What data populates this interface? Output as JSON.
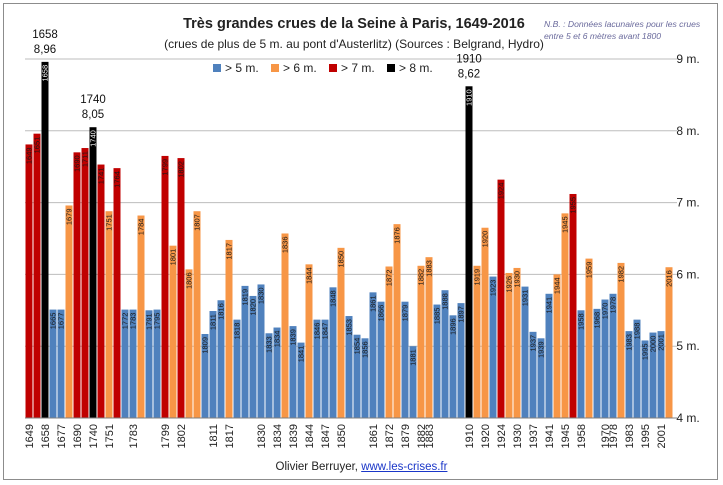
{
  "chart_data": {
    "type": "bar",
    "title": "Très grandes crues de la Seine à Paris, 1649-2016",
    "subtitle": "(crues de plus de 5 m. au pont d'Austerlitz) (Sources : Belgrand, Hydro)",
    "note": "N.B. : Données lacunaires pour les crues entre 5 et 6 mètres avant 1800",
    "ylim": [
      4,
      9
    ],
    "yticks": [
      "4 m.",
      "5 m.",
      "6 m.",
      "7 m.",
      "8 m.",
      "9 m."
    ],
    "legend": [
      {
        "label": "> 5 m.",
        "color": "#4f81bd"
      },
      {
        "label": "> 6 m.",
        "color": "#f79646"
      },
      {
        "label": "> 7 m.",
        "color": "#c00000"
      },
      {
        "label": "> 8 m.",
        "color": "#000000"
      }
    ],
    "x_labels": [
      "1649",
      "1658",
      "1677",
      "1690",
      "1740",
      "1751",
      "1783",
      "1799",
      "1802",
      "1811",
      "1817",
      "1830",
      "1834",
      "1839",
      "1844",
      "1847",
      "1850",
      "1861",
      "1872",
      "1879",
      "1882",
      "1883",
      "1910",
      "1920",
      "1924",
      "1930",
      "1937",
      "1941",
      "1945",
      "1958",
      "1970",
      "1978",
      "1983",
      "1995",
      "2001"
    ],
    "floods": [
      {
        "year": "1649",
        "value": 7.81,
        "cls": 3
      },
      {
        "year": "1651",
        "value": 7.96,
        "cls": 3
      },
      {
        "year": "1658",
        "value": 8.96,
        "cls": 4
      },
      {
        "year": "1665",
        "value": 5.51,
        "cls": 1
      },
      {
        "year": "1677",
        "value": 5.51,
        "cls": 1
      },
      {
        "year": "1679",
        "value": 6.96,
        "cls": 2
      },
      {
        "year": "1690",
        "value": 7.7,
        "cls": 3
      },
      {
        "year": "1711",
        "value": 7.76,
        "cls": 3
      },
      {
        "year": "1740",
        "value": 8.05,
        "cls": 4
      },
      {
        "year": "1741",
        "value": 7.53,
        "cls": 3
      },
      {
        "year": "1751",
        "value": 6.88,
        "cls": 2
      },
      {
        "year": "1764",
        "value": 7.48,
        "cls": 3
      },
      {
        "year": "1772",
        "value": 5.51,
        "cls": 1
      },
      {
        "year": "1783",
        "value": 5.51,
        "cls": 1
      },
      {
        "year": "1784",
        "value": 6.82,
        "cls": 2
      },
      {
        "year": "1791",
        "value": 5.5,
        "cls": 1
      },
      {
        "year": "1795",
        "value": 5.51,
        "cls": 1
      },
      {
        "year": "1799",
        "value": 7.65,
        "cls": 3
      },
      {
        "year": "1801",
        "value": 6.4,
        "cls": 2
      },
      {
        "year": "1802",
        "value": 7.62,
        "cls": 3
      },
      {
        "year": "1806",
        "value": 6.07,
        "cls": 2
      },
      {
        "year": "1807",
        "value": 6.88,
        "cls": 2
      },
      {
        "year": "1809",
        "value": 5.17,
        "cls": 1
      },
      {
        "year": "1811",
        "value": 5.49,
        "cls": 1
      },
      {
        "year": "1816",
        "value": 5.64,
        "cls": 1
      },
      {
        "year": "1817",
        "value": 6.48,
        "cls": 2
      },
      {
        "year": "1818",
        "value": 5.37,
        "cls": 1
      },
      {
        "year": "1819",
        "value": 5.84,
        "cls": 1
      },
      {
        "year": "1820",
        "value": 5.7,
        "cls": 1
      },
      {
        "year": "1830",
        "value": 5.86,
        "cls": 1
      },
      {
        "year": "1833",
        "value": 5.18,
        "cls": 1
      },
      {
        "year": "1834",
        "value": 5.26,
        "cls": 1
      },
      {
        "year": "1836",
        "value": 6.57,
        "cls": 2
      },
      {
        "year": "1839",
        "value": 5.28,
        "cls": 1
      },
      {
        "year": "1841",
        "value": 5.05,
        "cls": 1
      },
      {
        "year": "1844",
        "value": 6.14,
        "cls": 2
      },
      {
        "year": "1846",
        "value": 5.37,
        "cls": 1
      },
      {
        "year": "1847",
        "value": 5.37,
        "cls": 1
      },
      {
        "year": "1848",
        "value": 5.82,
        "cls": 1
      },
      {
        "year": "1850",
        "value": 6.37,
        "cls": 2
      },
      {
        "year": "1853",
        "value": 5.42,
        "cls": 1
      },
      {
        "year": "1854",
        "value": 5.16,
        "cls": 1
      },
      {
        "year": "1856",
        "value": 5.11,
        "cls": 1
      },
      {
        "year": "1861",
        "value": 5.75,
        "cls": 1
      },
      {
        "year": "1866",
        "value": 5.62,
        "cls": 1
      },
      {
        "year": "1872",
        "value": 6.11,
        "cls": 2
      },
      {
        "year": "1876",
        "value": 6.7,
        "cls": 2
      },
      {
        "year": "1879",
        "value": 5.62,
        "cls": 1
      },
      {
        "year": "1881",
        "value": 5.0,
        "cls": 1
      },
      {
        "year": "1882",
        "value": 6.12,
        "cls": 2
      },
      {
        "year": "1883",
        "value": 6.24,
        "cls": 2
      },
      {
        "year": "1885",
        "value": 5.58,
        "cls": 1
      },
      {
        "year": "1888",
        "value": 5.78,
        "cls": 1
      },
      {
        "year": "1896",
        "value": 5.43,
        "cls": 1
      },
      {
        "year": "1897",
        "value": 5.6,
        "cls": 1
      },
      {
        "year": "1910",
        "value": 8.62,
        "cls": 4
      },
      {
        "year": "1919",
        "value": 6.12,
        "cls": 2
      },
      {
        "year": "1920",
        "value": 6.65,
        "cls": 2
      },
      {
        "year": "1923",
        "value": 5.97,
        "cls": 1
      },
      {
        "year": "1924",
        "value": 7.32,
        "cls": 3
      },
      {
        "year": "1926",
        "value": 6.02,
        "cls": 2
      },
      {
        "year": "1930",
        "value": 6.09,
        "cls": 2
      },
      {
        "year": "1931",
        "value": 5.83,
        "cls": 1
      },
      {
        "year": "1937",
        "value": 5.2,
        "cls": 1
      },
      {
        "year": "1939",
        "value": 5.11,
        "cls": 1
      },
      {
        "year": "1941",
        "value": 5.73,
        "cls": 1
      },
      {
        "year": "1944",
        "value": 6.0,
        "cls": 2
      },
      {
        "year": "1945",
        "value": 6.85,
        "cls": 2
      },
      {
        "year": "1955",
        "value": 7.12,
        "cls": 3
      },
      {
        "year": "1958",
        "value": 5.5,
        "cls": 1
      },
      {
        "year": "1959",
        "value": 6.22,
        "cls": 2
      },
      {
        "year": "1968",
        "value": 5.52,
        "cls": 1
      },
      {
        "year": "1970",
        "value": 5.65,
        "cls": 1
      },
      {
        "year": "1978",
        "value": 5.73,
        "cls": 1
      },
      {
        "year": "1982",
        "value": 6.16,
        "cls": 2
      },
      {
        "year": "1983",
        "value": 5.21,
        "cls": 1
      },
      {
        "year": "1988",
        "value": 5.37,
        "cls": 1
      },
      {
        "year": "1995",
        "value": 5.08,
        "cls": 1
      },
      {
        "year": "2000",
        "value": 5.19,
        "cls": 1
      },
      {
        "year": "2001",
        "value": 5.21,
        "cls": 1
      },
      {
        "year": "2016",
        "value": 6.1,
        "cls": 2
      }
    ],
    "annotations": [
      {
        "year": "1658",
        "label": "1658",
        "value": "8,96"
      },
      {
        "year": "1740",
        "label": "1740",
        "value": "8,05"
      },
      {
        "year": "1910",
        "label": "1910",
        "value": "8,62"
      }
    ]
  },
  "footer": {
    "author": "Olivier Berruyer,",
    "link": "www.les-crises.fr"
  }
}
